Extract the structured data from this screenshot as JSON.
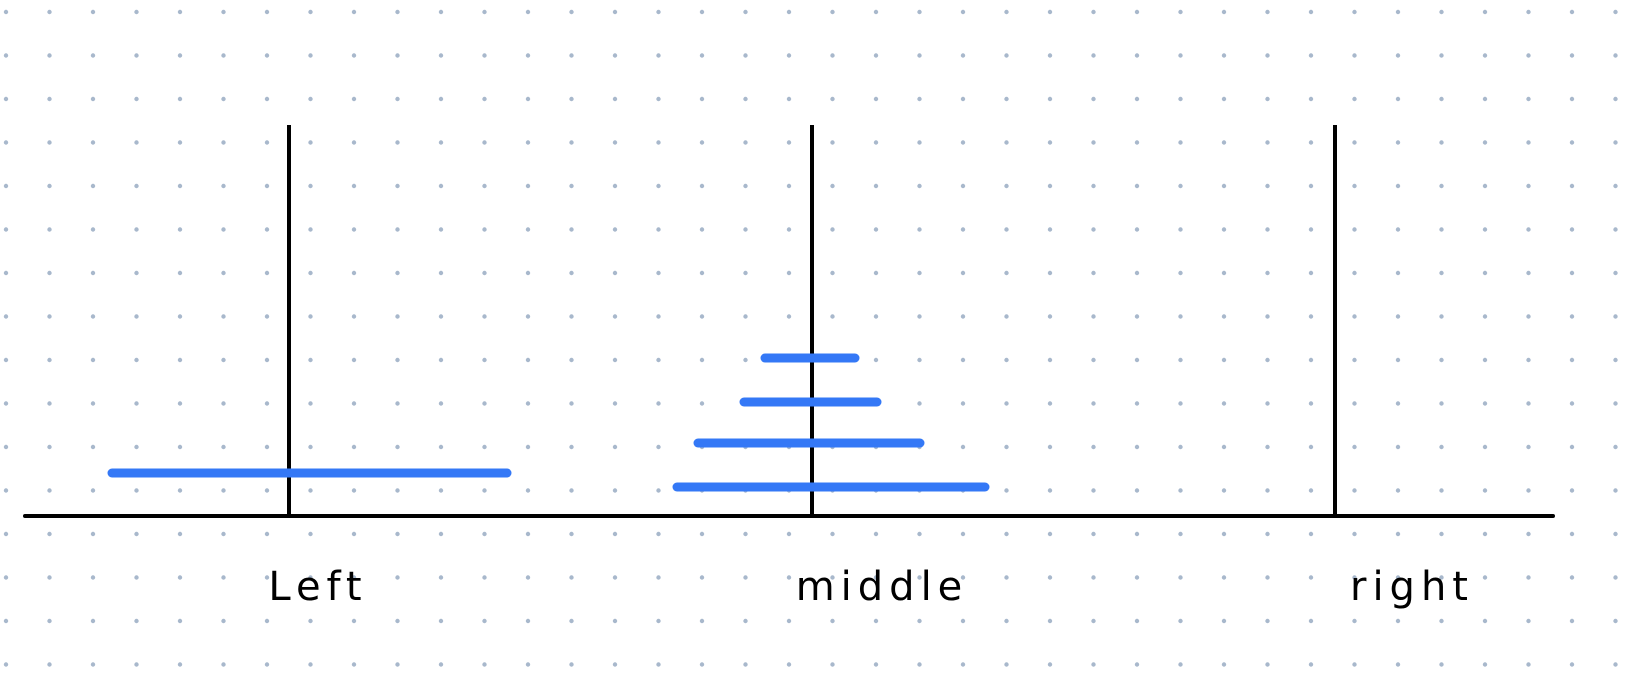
{
  "diagram": {
    "colors": {
      "background": "#ffffff",
      "dot": "#a8b8cc",
      "stroke": "#000000",
      "disk": "#3478f6"
    },
    "pegs": [
      {
        "id": "left",
        "label": "Left",
        "disks": [
          4
        ]
      },
      {
        "id": "middle",
        "label": "middle",
        "disks": [
          3,
          2,
          1,
          0
        ]
      },
      {
        "id": "right",
        "label": "right",
        "disks": []
      }
    ]
  }
}
